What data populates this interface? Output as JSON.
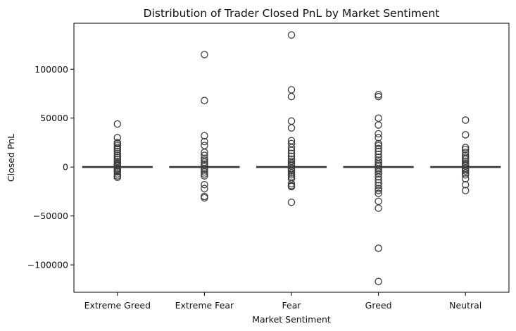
{
  "chart_data": {
    "type": "box",
    "title": "Distribution of Trader Closed PnL by Market Sentiment",
    "xlabel": "Market Sentiment",
    "ylabel": "Closed PnL",
    "categories": [
      "Extreme Greed",
      "Extreme Fear",
      "Fear",
      "Greed",
      "Neutral"
    ],
    "yticks": [
      -100000,
      -50000,
      0,
      50000,
      100000
    ],
    "ytick_labels": [
      "−100000",
      "−50000",
      "0",
      "50000",
      "100000"
    ],
    "ylim": [
      -128000,
      147000
    ],
    "grid": false,
    "legend": "none",
    "colors": {
      "box_stroke": "#3d3d3d",
      "axis": "#000000",
      "background": "#ffffff"
    },
    "boxes": [
      {
        "category": "Extreme Greed",
        "q1": -40,
        "median": 0,
        "q3": 60,
        "whisker_low": -150,
        "whisker_high": 150,
        "outliers": [
          44000,
          30000,
          25000,
          24000,
          22000,
          20000,
          18000,
          16000,
          14000,
          12000,
          10000,
          8000,
          6000,
          4500,
          3000,
          2000,
          1000,
          -1000,
          -2000,
          -3500,
          -5000,
          -7000,
          -9000,
          -10500
        ]
      },
      {
        "category": "Extreme Fear",
        "q1": -40,
        "median": 0,
        "q3": 60,
        "whisker_low": -150,
        "whisker_high": 150,
        "outliers": [
          115000,
          68000,
          32000,
          26000,
          22000,
          15000,
          12000,
          9000,
          7000,
          5000,
          3000,
          1500,
          -1500,
          -3000,
          -5000,
          -7000,
          -9000,
          -18000,
          -22000,
          -30000,
          -31500
        ]
      },
      {
        "category": "Fear",
        "q1": -40,
        "median": 0,
        "q3": 60,
        "whisker_low": -150,
        "whisker_high": 150,
        "outliers": [
          135000,
          79000,
          72000,
          47000,
          40000,
          27000,
          24000,
          20000,
          17000,
          14000,
          11000,
          8000,
          6000,
          4000,
          2500,
          1200,
          -1200,
          -2500,
          -4000,
          -6000,
          -8000,
          -10000,
          -12000,
          -17000,
          -19000,
          -20000,
          -36000
        ]
      },
      {
        "category": "Greed",
        "q1": -40,
        "median": 0,
        "q3": 60,
        "whisker_low": -150,
        "whisker_high": 150,
        "outliers": [
          74000,
          72000,
          50000,
          43000,
          34000,
          30000,
          24000,
          22000,
          19000,
          16000,
          13000,
          10000,
          7000,
          5000,
          3000,
          1500,
          -1500,
          -3000,
          -5000,
          -7000,
          -10000,
          -13000,
          -16000,
          -19000,
          -22000,
          -24000,
          -27000,
          -35000,
          -42000,
          -83000,
          -117000
        ]
      },
      {
        "category": "Neutral",
        "q1": -40,
        "median": 0,
        "q3": 60,
        "whisker_low": -150,
        "whisker_high": 150,
        "outliers": [
          48000,
          33000,
          20000,
          18000,
          15000,
          12000,
          10000,
          8000,
          6000,
          4000,
          2500,
          1200,
          -1200,
          -2500,
          -4000,
          -6000,
          -8000,
          -12000,
          -18000,
          -24000
        ]
      }
    ]
  }
}
